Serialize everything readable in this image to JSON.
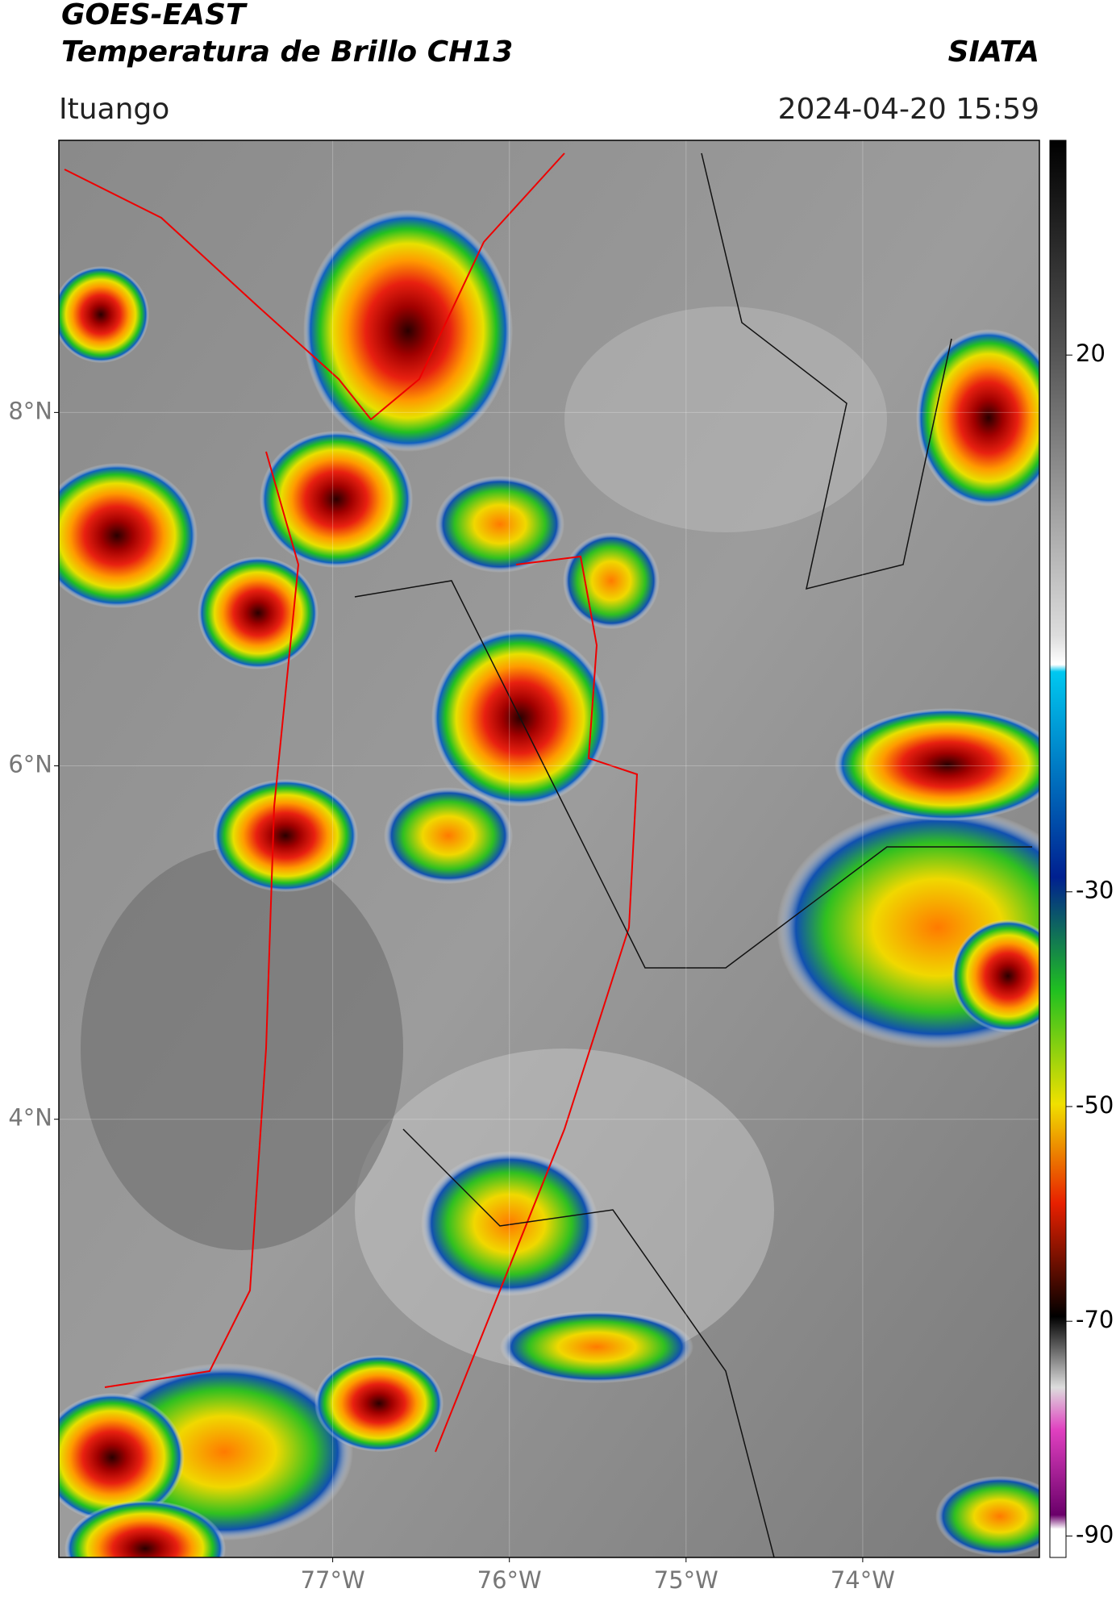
{
  "header": {
    "title": "GOES-EAST",
    "subtitle": "Temperatura de Brillo CH13",
    "source": "SIATA",
    "location": "Ituango",
    "timestamp": "2024-04-20 15:59"
  },
  "map": {
    "lat_range": [
      1.52,
      9.54
    ],
    "lon_range": [
      -78.55,
      -73.0
    ],
    "lat_ticks": [
      {
        "value": 8,
        "label": "8°N"
      },
      {
        "value": 6,
        "label": "6°N"
      },
      {
        "value": 4,
        "label": "4°N"
      }
    ],
    "lon_ticks": [
      {
        "value": -77,
        "label": "77°W"
      },
      {
        "value": -76,
        "label": "76°W"
      },
      {
        "value": -75,
        "label": "75°W"
      },
      {
        "value": -74,
        "label": "74°W"
      }
    ]
  },
  "colorbar": {
    "range": [
      -92,
      40
    ],
    "ticks": [
      20,
      -30,
      -50,
      -70,
      -90
    ]
  }
}
